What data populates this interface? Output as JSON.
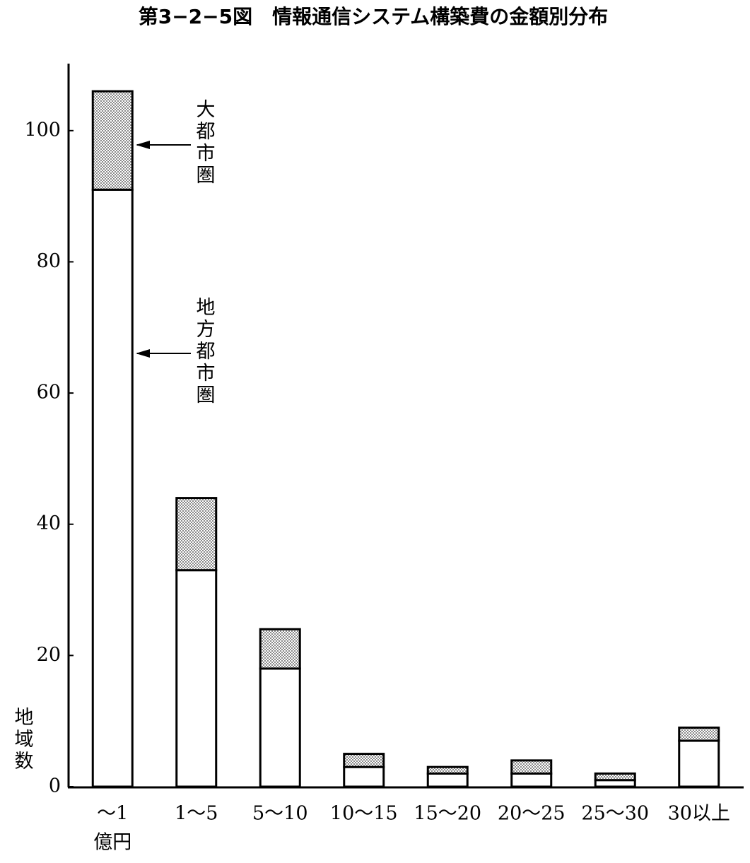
{
  "chart_data": {
    "type": "stacked_bar",
    "title": "第3−2−5図　情報通信システム構築費の金額別分布",
    "categories": [
      "〜1",
      "1〜5",
      "5〜10",
      "10〜15",
      "15〜20",
      "20〜25",
      "25〜30",
      "30以上"
    ],
    "x_unit": "億円",
    "y_label": "地域数",
    "series": [
      {
        "name": "地方都市圏",
        "color": "#ffffff",
        "values": [
          91,
          33,
          18,
          3,
          2,
          2,
          1,
          7
        ]
      },
      {
        "name": "大都市圏",
        "color": "#8a8a8a",
        "pattern": "dots",
        "values": [
          15,
          11,
          6,
          2,
          1,
          2,
          1,
          2
        ]
      }
    ],
    "ylim": [
      0,
      110
    ],
    "yticks": [
      0,
      20,
      40,
      60,
      80,
      100
    ],
    "grid": false
  }
}
